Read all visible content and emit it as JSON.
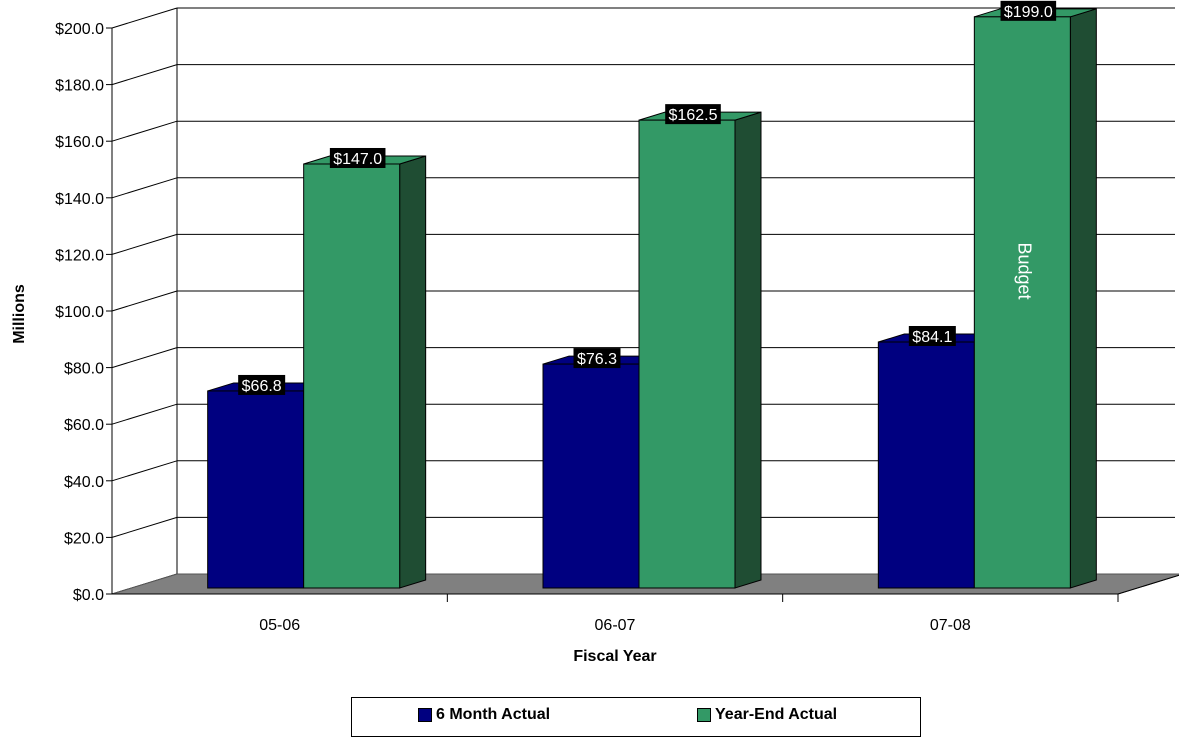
{
  "chart_data": {
    "type": "bar",
    "categories": [
      "05-06",
      "06-07",
      "07-08"
    ],
    "series": [
      {
        "name": "6 Month Actual",
        "values": [
          66.8,
          76.3,
          84.1
        ],
        "labels": [
          "$66.8",
          "$76.3",
          "$84.1"
        ],
        "color": "#000080",
        "side_color": "#00004d"
      },
      {
        "name": "Year-End Actual",
        "values": [
          147.0,
          162.5,
          199.0
        ],
        "labels": [
          "$147.0",
          "$162.5",
          "$199.0"
        ],
        "color": "#339966",
        "side_color": "#1f4d33"
      }
    ],
    "xlabel": "Fiscal Year",
    "ylabel": "Millions",
    "ylim": [
      0,
      200
    ],
    "yticks": [
      "$0.0",
      "$20.0",
      "$40.0",
      "$60.0",
      "$80.0",
      "$100.0",
      "$120.0",
      "$140.0",
      "$160.0",
      "$180.0",
      "$200.0"
    ],
    "annotation": "Budget",
    "grid": true,
    "legend_position": "bottom",
    "floor_color": "#808080"
  }
}
